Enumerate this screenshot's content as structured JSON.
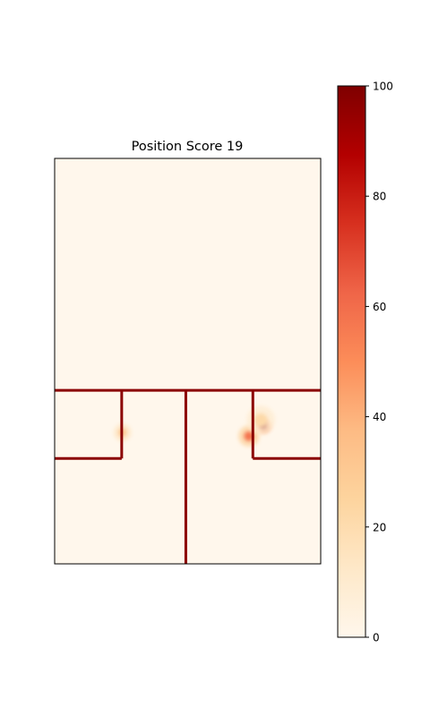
{
  "chart_data": {
    "type": "heatmap",
    "title": "Position Score 19",
    "xlabel": "",
    "ylabel": "",
    "axis_ticks_shown": false,
    "colormap": "OrRd",
    "colorbar": {
      "range": [
        0,
        100
      ],
      "ticks": [
        0,
        20,
        40,
        60,
        80,
        100
      ],
      "tick_labels": [
        "0",
        "20",
        "40",
        "60",
        "80",
        "100"
      ],
      "placement": "right"
    },
    "colors": {
      "wall": "#8b0000",
      "background": "#fff7ec",
      "frame": "#000000"
    },
    "hotspots": [
      {
        "name": "left-room-doorway",
        "x": 0.255,
        "y": 0.676,
        "value": 32,
        "spread": 1.0
      },
      {
        "name": "right-room-doorway-upper",
        "x": 0.785,
        "y": 0.66,
        "value": 100,
        "spread": 0.85
      },
      {
        "name": "right-room-doorway-lower",
        "x": 0.73,
        "y": 0.685,
        "value": 58,
        "spread": 1.2
      },
      {
        "name": "right-room-faint",
        "x": 0.775,
        "y": 0.645,
        "value": 22,
        "spread": 1.6
      }
    ],
    "walls": [
      {
        "name": "horizontal-corridor-wall",
        "x1": 0,
        "y1": 0.572,
        "x2": 1,
        "y2": 0.572
      },
      {
        "name": "left-room-right-wall",
        "x1": 0.252,
        "y1": 0.572,
        "x2": 0.252,
        "y2": 0.74
      },
      {
        "name": "left-room-bottom-wall",
        "x1": 0,
        "y1": 0.74,
        "x2": 0.252,
        "y2": 0.74
      },
      {
        "name": "center-divider-wall",
        "x1": 0.493,
        "y1": 0.572,
        "x2": 0.493,
        "y2": 1
      },
      {
        "name": "right-room-left-wall",
        "x1": 0.745,
        "y1": 0.572,
        "x2": 0.745,
        "y2": 0.74
      },
      {
        "name": "right-room-bottom-wall",
        "x1": 0.745,
        "y1": 0.74,
        "x2": 1,
        "y2": 0.74
      }
    ]
  }
}
